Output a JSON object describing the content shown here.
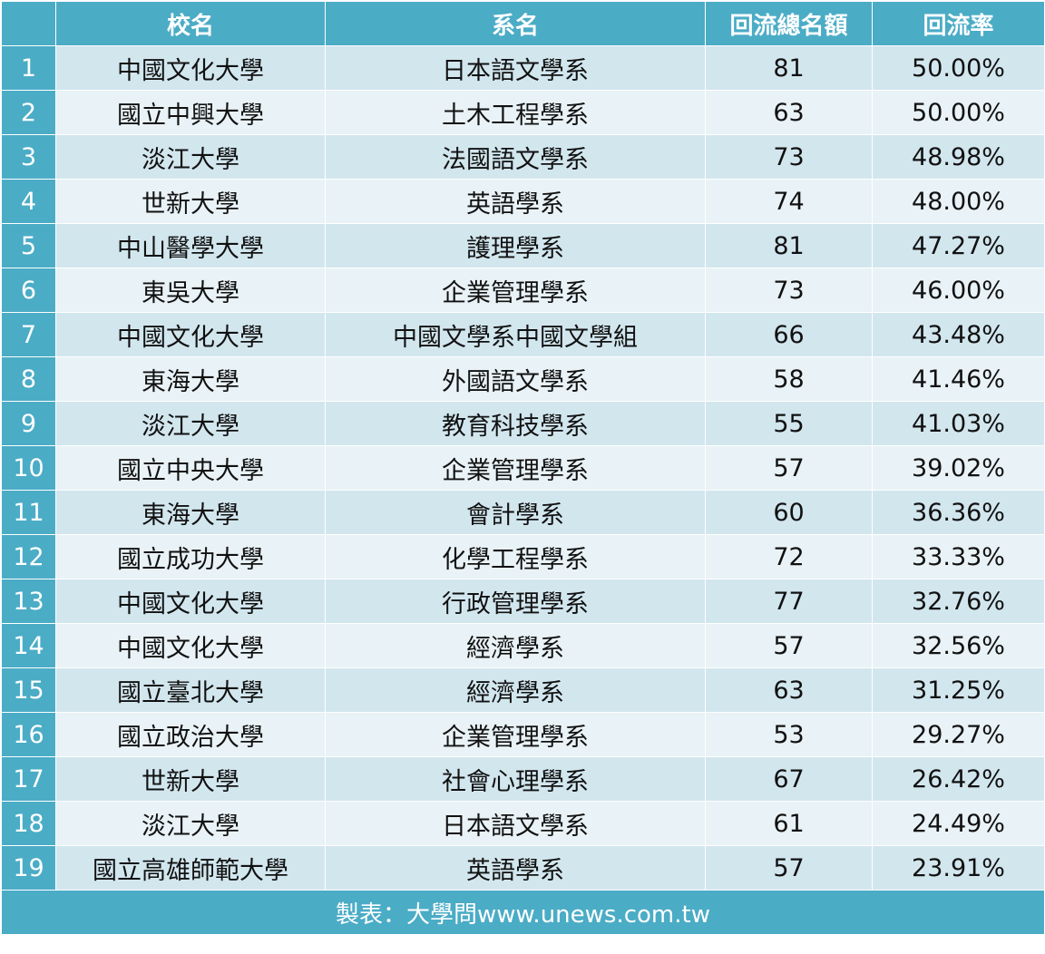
{
  "header": {
    "index": "",
    "school": "校名",
    "department": "系名",
    "total": "回流總名額",
    "rate": "回流率"
  },
  "rows": [
    {
      "index": "1",
      "school": "中國文化大學",
      "department": "日本語文學系",
      "total": "81",
      "rate": "50.00%"
    },
    {
      "index": "2",
      "school": "國立中興大學",
      "department": "土木工程學系",
      "total": "63",
      "rate": "50.00%"
    },
    {
      "index": "3",
      "school": "淡江大學",
      "department": "法國語文學系",
      "total": "73",
      "rate": "48.98%"
    },
    {
      "index": "4",
      "school": "世新大學",
      "department": "英語學系",
      "total": "74",
      "rate": "48.00%"
    },
    {
      "index": "5",
      "school": "中山醫學大學",
      "department": "護理學系",
      "total": "81",
      "rate": "47.27%"
    },
    {
      "index": "6",
      "school": "東吳大學",
      "department": "企業管理學系",
      "total": "73",
      "rate": "46.00%"
    },
    {
      "index": "7",
      "school": "中國文化大學",
      "department": "中國文學系中國文學組",
      "total": "66",
      "rate": "43.48%"
    },
    {
      "index": "8",
      "school": "東海大學",
      "department": "外國語文學系",
      "total": "58",
      "rate": "41.46%"
    },
    {
      "index": "9",
      "school": "淡江大學",
      "department": "教育科技學系",
      "total": "55",
      "rate": "41.03%"
    },
    {
      "index": "10",
      "school": "國立中央大學",
      "department": "企業管理學系",
      "total": "57",
      "rate": "39.02%"
    },
    {
      "index": "11",
      "school": "東海大學",
      "department": "會計學系",
      "total": "60",
      "rate": "36.36%"
    },
    {
      "index": "12",
      "school": "國立成功大學",
      "department": "化學工程學系",
      "total": "72",
      "rate": "33.33%"
    },
    {
      "index": "13",
      "school": "中國文化大學",
      "department": "行政管理學系",
      "total": "77",
      "rate": "32.76%"
    },
    {
      "index": "14",
      "school": "中國文化大學",
      "department": "經濟學系",
      "total": "57",
      "rate": "32.56%"
    },
    {
      "index": "15",
      "school": "國立臺北大學",
      "department": "經濟學系",
      "total": "63",
      "rate": "31.25%"
    },
    {
      "index": "16",
      "school": "國立政治大學",
      "department": "企業管理學系",
      "total": "53",
      "rate": "29.27%"
    },
    {
      "index": "17",
      "school": "世新大學",
      "department": "社會心理學系",
      "total": "67",
      "rate": "26.42%"
    },
    {
      "index": "18",
      "school": "淡江大學",
      "department": "日本語文學系",
      "total": "61",
      "rate": "24.49%"
    },
    {
      "index": "19",
      "school": "國立高雄師範大學",
      "department": "英語學系",
      "total": "57",
      "rate": "23.91%"
    }
  ],
  "footer": {
    "credit": "製表：大學問www.unews.com.tw"
  },
  "colors": {
    "header_bg": "#4bacc6",
    "row_odd_bg": "#d2e6ee",
    "row_even_bg": "#e9f2f6",
    "header_text": "#ffffff"
  }
}
